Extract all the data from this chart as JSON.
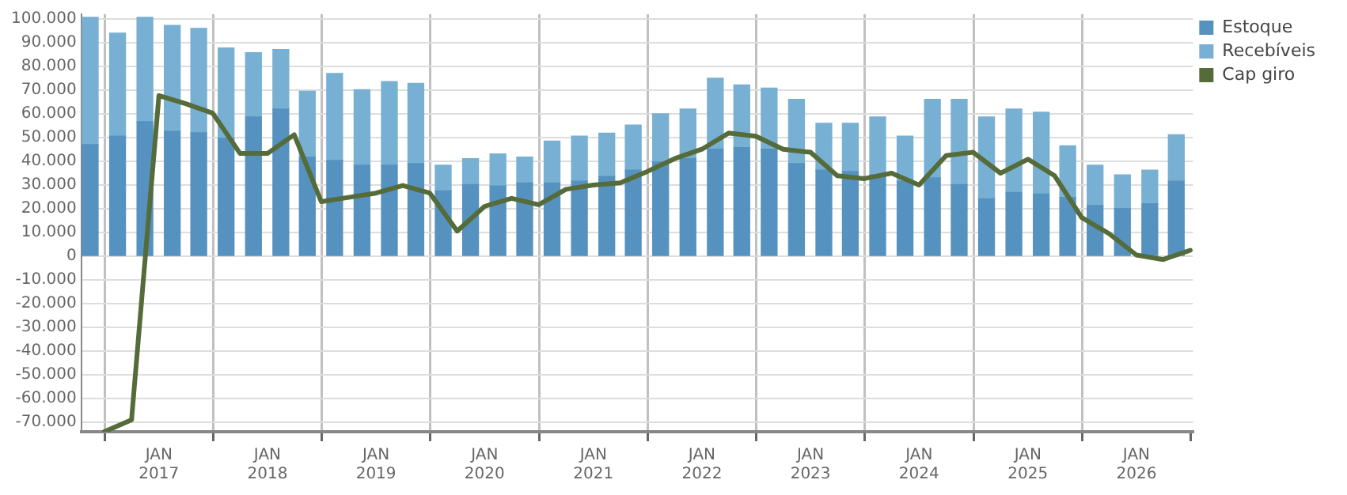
{
  "chart_data": {
    "type": "bar",
    "stacked": true,
    "legend": "right",
    "grid": true,
    "xlim": [
      "2016-04-15",
      "2026-07-10"
    ],
    "xticks": [
      {
        "value": "2017-01-01",
        "label": "JAN 2017"
      },
      {
        "value": "2018-01-01",
        "label": "JAN 2018"
      },
      {
        "value": "2019-01-01",
        "label": "JAN 2019"
      },
      {
        "value": "2020-01-01",
        "label": "JAN 2020"
      },
      {
        "value": "2021-01-01",
        "label": "JAN 2021"
      },
      {
        "value": "2022-01-01",
        "label": "JAN 2022"
      },
      {
        "value": "2023-01-01",
        "label": "JAN 2023"
      },
      {
        "value": "2024-01-01",
        "label": "JAN 2024"
      },
      {
        "value": "2025-01-01",
        "label": "JAN 2025"
      },
      {
        "value": "2026-01-01",
        "label": "JAN 2026"
      }
    ],
    "ylim": [
      -74000,
      102000
    ],
    "yticks": [
      {
        "value": -70000,
        "label": "-70.000"
      },
      {
        "value": -60000,
        "label": "-60.000"
      },
      {
        "value": -50000,
        "label": "-50.000"
      },
      {
        "value": -40000,
        "label": "-40.000"
      },
      {
        "value": -30000,
        "label": "-30.000"
      },
      {
        "value": -20000,
        "label": "-20.000"
      },
      {
        "value": -10000,
        "label": "-10.000"
      },
      {
        "value": 0,
        "label": "0"
      },
      {
        "value": 10000,
        "label": "10.000"
      },
      {
        "value": 20000,
        "label": "20.000"
      },
      {
        "value": 30000,
        "label": "30.000"
      },
      {
        "value": 40000,
        "label": "40.000"
      },
      {
        "value": 50000,
        "label": "50.000"
      },
      {
        "value": 60000,
        "label": "60.000"
      },
      {
        "value": 70000,
        "label": "70.000"
      },
      {
        "value": 80000,
        "label": "80.000"
      },
      {
        "value": 90000,
        "label": "90.000"
      },
      {
        "value": 100000,
        "label": "100.000"
      }
    ],
    "x": [
      "2016-05-15",
      "2016-08-15",
      "2016-11-15",
      "2017-02-15",
      "2017-05-15",
      "2017-08-15",
      "2017-11-15",
      "2018-02-15",
      "2018-05-15",
      "2018-08-15",
      "2018-11-15",
      "2019-02-15",
      "2019-05-15",
      "2019-08-15",
      "2019-11-15",
      "2020-02-15",
      "2020-05-15",
      "2020-08-15",
      "2020-11-15",
      "2021-02-15",
      "2021-05-15",
      "2021-08-15",
      "2021-11-15",
      "2022-02-15",
      "2022-05-15",
      "2022-08-15",
      "2022-11-15",
      "2023-02-15",
      "2023-05-15",
      "2023-08-15",
      "2023-11-15",
      "2024-02-15",
      "2024-05-15",
      "2024-08-15",
      "2024-11-15",
      "2025-02-15",
      "2025-05-15",
      "2025-08-15",
      "2025-11-15",
      "2026-02-15",
      "2026-05-15"
    ],
    "series": [
      {
        "name": "Estoque",
        "color": "#5592c0",
        "values": [
          47000,
          50600,
          56700,
          52600,
          52000,
          49700,
          58700,
          62000,
          41800,
          40400,
          38400,
          38400,
          39000,
          27500,
          30200,
          29600,
          30900,
          30900,
          31600,
          33600,
          36300,
          39700,
          41100,
          45100,
          45800,
          45100,
          39000,
          36300,
          35700,
          34300,
          31600,
          33000,
          30200,
          24200,
          26900,
          26200,
          24800,
          21400,
          20100,
          22100,
          31600
        ]
      },
      {
        "name": "Recebíveis",
        "color": "#77b0d2",
        "values": [
          53700,
          43400,
          44000,
          44700,
          44000,
          38100,
          27100,
          25100,
          27700,
          36600,
          31800,
          35200,
          33900,
          10900,
          10900,
          13500,
          10900,
          17600,
          19000,
          18300,
          19000,
          20300,
          20900,
          29900,
          26400,
          25800,
          27100,
          19700,
          20300,
          24400,
          19000,
          33100,
          35900,
          34500,
          35100,
          34500,
          21700,
          17000,
          14200,
          14200,
          19600
        ]
      },
      {
        "name": "Cap giro",
        "type": "line",
        "color": "#556b3a",
        "x": [
          "2016-07-01",
          "2016-10-01",
          "2017-01-01",
          "2017-04-01",
          "2017-07-01",
          "2017-10-01",
          "2018-01-01",
          "2018-04-01",
          "2018-07-01",
          "2018-10-01",
          "2019-01-01",
          "2019-04-01",
          "2019-07-01",
          "2019-10-01",
          "2020-01-01",
          "2020-04-01",
          "2020-07-01",
          "2020-10-01",
          "2021-01-01",
          "2021-04-01",
          "2021-07-01",
          "2021-10-01",
          "2022-01-01",
          "2022-04-01",
          "2022-07-01",
          "2022-10-01",
          "2023-01-01",
          "2023-04-01",
          "2023-07-01",
          "2023-10-01",
          "2024-01-01",
          "2024-04-01",
          "2024-07-01",
          "2024-10-01",
          "2025-01-01",
          "2025-04-01",
          "2025-07-01",
          "2025-10-01",
          "2026-01-01",
          "2026-04-01",
          "2026-07-01"
        ],
        "values": [
          -74000,
          -69000,
          67700,
          64300,
          60300,
          43300,
          43300,
          51200,
          23000,
          24800,
          26600,
          29800,
          26600,
          10600,
          21000,
          24400,
          21700,
          28200,
          30000,
          30900,
          35700,
          41100,
          45100,
          51900,
          50600,
          45100,
          43800,
          33900,
          32700,
          35000,
          30000,
          42400,
          43800,
          35000,
          40900,
          33900,
          16300,
          9500,
          500,
          -1400,
          2500
        ]
      }
    ]
  }
}
